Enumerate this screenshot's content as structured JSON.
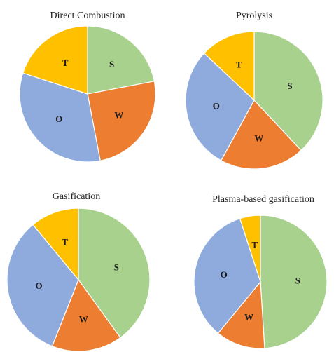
{
  "colors": {
    "S": "#A9D18E",
    "W": "#ED7D31",
    "O": "#8FAADC",
    "T": "#FFC000"
  },
  "chart_data": [
    {
      "type": "pie",
      "title": "Direct Combustion",
      "labels": [
        "S",
        "W",
        "O",
        "T"
      ],
      "values": [
        22,
        25,
        33,
        20
      ]
    },
    {
      "type": "pie",
      "title": "Pyrolysis",
      "labels": [
        "S",
        "W",
        "O",
        "T"
      ],
      "values": [
        38,
        20,
        29,
        13
      ]
    },
    {
      "type": "pie",
      "title": "Gasification",
      "labels": [
        "S",
        "W",
        "O",
        "T"
      ],
      "values": [
        40,
        16,
        33,
        11
      ]
    },
    {
      "type": "pie",
      "title": "Plasma-based gasification",
      "labels": [
        "S",
        "W",
        "O",
        "T"
      ],
      "values": [
        49,
        12,
        34,
        5
      ]
    }
  ]
}
